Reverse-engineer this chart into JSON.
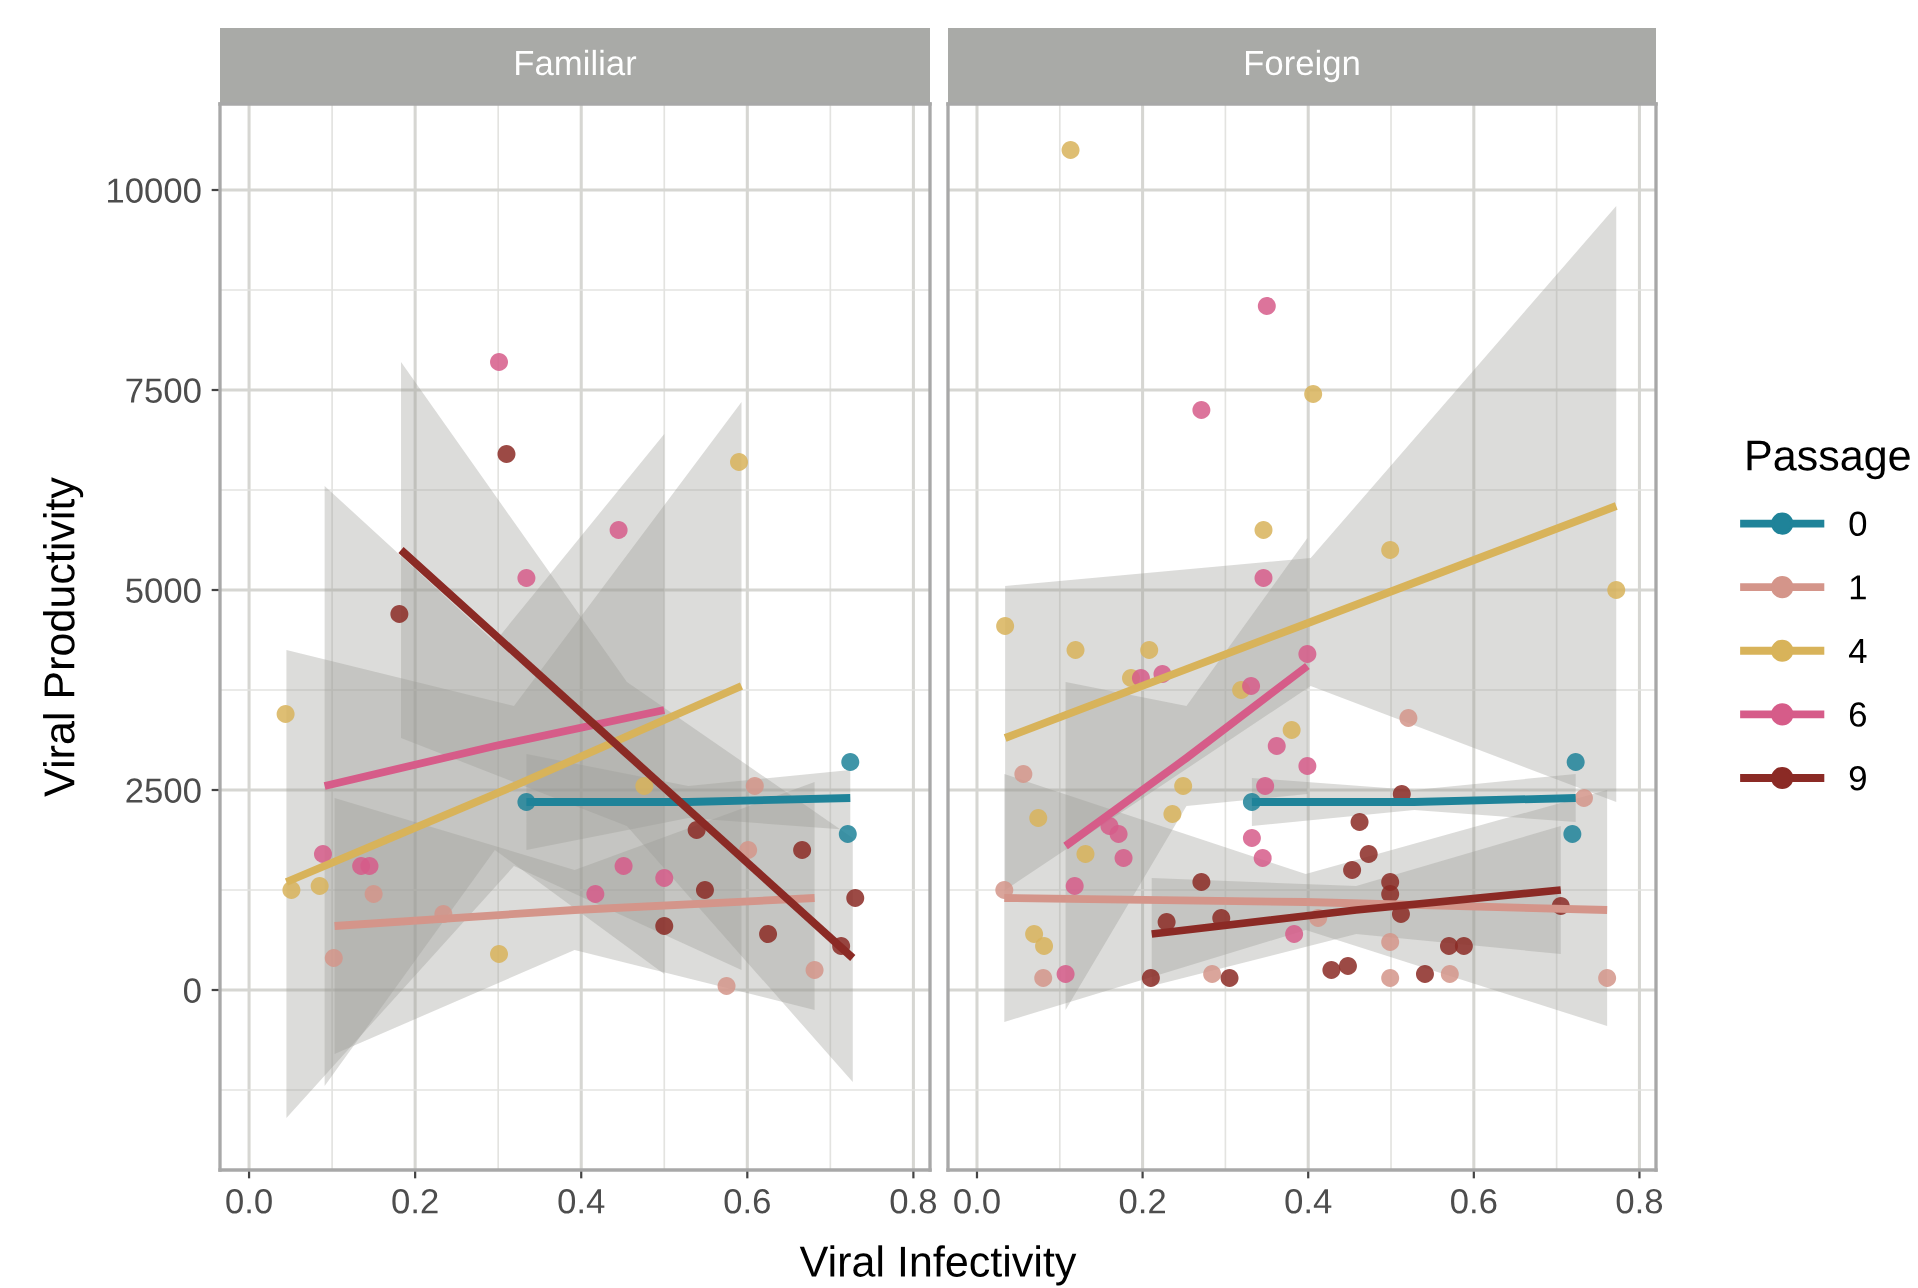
{
  "chart_data": [
    {
      "type": "scatter",
      "title": "Familiar",
      "xlabel": "Viral Infectivity",
      "ylabel": "Viral Productivity",
      "xlim": [
        -0.035,
        0.82
      ],
      "ylim": [
        -2250,
        11075
      ],
      "xticks": [
        {
          "value": 0,
          "label": "0.0"
        },
        0.2,
        0.4,
        0.6,
        0.8
      ],
      "yticks": [
        0,
        2500,
        5000,
        7500,
        10000
      ],
      "grid": true,
      "series": [
        {
          "marker": "circle",
          "color": "#1f8399",
          "x": [
            0.334,
            0.724,
            0.721
          ],
          "values": [
            2350,
            2850,
            1950
          ]
        },
        {
          "marker": "circle",
          "color": "#d4958a",
          "x": [
            0.609,
            0.601,
            0.102,
            0.15,
            0.234,
            0.575,
            0.681
          ],
          "values": [
            2550,
            1750,
            400,
            1200,
            950,
            50,
            250
          ]
        },
        {
          "marker": "circle",
          "color": "#d8b35a",
          "x": [
            0.051,
            0.085,
            0.044,
            0.301,
            0.476,
            0.59
          ],
          "values": [
            1250,
            1300,
            3450,
            450,
            2550,
            6600
          ]
        },
        {
          "marker": "circle",
          "color": "#d65c89",
          "x": [
            0.089,
            0.135,
            0.145,
            0.417,
            0.451,
            0.5,
            0.334,
            0.445,
            0.301
          ],
          "values": [
            1700,
            1550,
            1550,
            1200,
            1550,
            1400,
            5150,
            5750,
            7850
          ]
        },
        {
          "marker": "circle",
          "color": "#8b2a25",
          "x": [
            0.539,
            0.549,
            0.5,
            0.666,
            0.625,
            0.73,
            0.713,
            0.181,
            0.31
          ],
          "values": [
            2000,
            1250,
            800,
            1750,
            700,
            1150,
            550,
            4700,
            6700
          ]
        },
        {
          "type": "line",
          "color": "#1f8399",
          "x": [
            0.334,
            0.529,
            0.724
          ],
          "values": [
            2350,
            2350,
            2400
          ],
          "lower": [
            1750,
            2150,
            2000
          ],
          "upper": [
            2950,
            2550,
            2750
          ]
        },
        {
          "type": "line",
          "color": "#d4958a",
          "x": [
            0.103,
            0.392,
            0.681
          ],
          "values": [
            800,
            1000,
            1150
          ],
          "lower": [
            -800,
            500,
            -250
          ],
          "upper": [
            2400,
            1500,
            2600
          ]
        },
        {
          "type": "line",
          "color": "#d8b35a",
          "x": [
            0.045,
            0.319,
            0.593
          ],
          "values": [
            1350,
            2550,
            3800
          ],
          "lower": [
            -1600,
            1550,
            250
          ],
          "upper": [
            4250,
            3550,
            7350
          ]
        },
        {
          "type": "line",
          "color": "#d65c89",
          "x": [
            0.091,
            0.296,
            0.5
          ],
          "values": [
            2550,
            3050,
            3500
          ],
          "lower": [
            -1200,
            1750,
            200
          ],
          "upper": [
            6300,
            4350,
            6950
          ]
        },
        {
          "type": "line",
          "color": "#8b2a25",
          "x": [
            0.183,
            0.455,
            0.727
          ],
          "values": [
            5500,
            2950,
            400
          ],
          "lower": [
            3150,
            2050,
            -1150
          ],
          "upper": [
            7850,
            3850,
            1900
          ]
        }
      ]
    },
    {
      "type": "scatter",
      "title": "Foreign",
      "legend_title": "Passage",
      "legend": "right",
      "tick_labels": "x",
      "xlim": [
        -0.035,
        0.82
      ],
      "ylim": [
        -2250,
        11075
      ],
      "xticks": [
        {
          "value": 0,
          "label": "0.0"
        },
        0.2,
        0.4,
        0.6,
        0.8
      ],
      "yticks": [
        0,
        2500,
        5000,
        7500,
        10000
      ],
      "grid": true,
      "series": [
        {
          "marker": "circle",
          "color": "#1f8399",
          "x": [
            0.332,
            0.723,
            0.719
          ],
          "values": [
            2350,
            2850,
            1950
          ]
        },
        {
          "marker": "circle",
          "color": "#d4958a",
          "x": [
            0.521,
            0.056,
            0.733,
            0.033,
            0.412,
            0.499,
            0.08,
            0.284,
            0.499,
            0.571,
            0.761
          ],
          "values": [
            3400,
            2700,
            2400,
            1250,
            900,
            600,
            150,
            200,
            150,
            200,
            150
          ]
        },
        {
          "marker": "circle",
          "color": "#d8b35a",
          "x": [
            0.034,
            0.119,
            0.208,
            0.186,
            0.319,
            0.346,
            0.499,
            0.772,
            0.38,
            0.249,
            0.236,
            0.074,
            0.131,
            0.069,
            0.081,
            0.113,
            0.406
          ],
          "values": [
            4550,
            4250,
            4250,
            3900,
            3750,
            5750,
            5500,
            5000,
            3250,
            2550,
            2200,
            2150,
            1700,
            700,
            550,
            10500,
            7450
          ]
        },
        {
          "marker": "circle",
          "color": "#d65c89",
          "x": [
            0.198,
            0.224,
            0.331,
            0.346,
            0.399,
            0.362,
            0.399,
            0.348,
            0.332,
            0.345,
            0.16,
            0.171,
            0.177,
            0.118,
            0.383,
            0.107,
            0.35,
            0.271
          ],
          "values": [
            3900,
            3950,
            3800,
            5150,
            4200,
            3050,
            2800,
            2550,
            1900,
            1650,
            2050,
            1950,
            1650,
            1300,
            700,
            200,
            8550,
            7250
          ]
        },
        {
          "marker": "circle",
          "color": "#8b2a25",
          "x": [
            0.513,
            0.462,
            0.453,
            0.473,
            0.271,
            0.499,
            0.499,
            0.512,
            0.705,
            0.229,
            0.295,
            0.57,
            0.588,
            0.21,
            0.305,
            0.428,
            0.448,
            0.541
          ],
          "values": [
            2450,
            2100,
            1500,
            1700,
            1350,
            1350,
            1200,
            950,
            1050,
            850,
            900,
            550,
            550,
            150,
            150,
            250,
            300,
            200
          ]
        },
        {
          "type": "line",
          "name": "0",
          "color": "#1f8399",
          "x": [
            0.332,
            0.528,
            0.723
          ],
          "values": [
            2350,
            2350,
            2400
          ],
          "lower": [
            2050,
            2250,
            2100
          ],
          "upper": [
            2650,
            2500,
            2700
          ]
        },
        {
          "type": "line",
          "name": "1",
          "color": "#d4958a",
          "x": [
            0.033,
            0.397,
            0.761
          ],
          "values": [
            1150,
            1100,
            1000
          ],
          "lower": [
            -400,
            750,
            -450
          ],
          "upper": [
            2700,
            1450,
            2500
          ]
        },
        {
          "type": "line",
          "name": "4",
          "color": "#d8b35a",
          "x": [
            0.034,
            0.403,
            0.772
          ],
          "values": [
            3150,
            4600,
            6050
          ],
          "lower": [
            1250,
            3800,
            2350
          ],
          "upper": [
            5050,
            5400,
            9800
          ]
        },
        {
          "type": "line",
          "name": "6",
          "color": "#d65c89",
          "x": [
            0.107,
            0.253,
            0.399
          ],
          "values": [
            1800,
            2900,
            4050
          ],
          "lower": [
            -250,
            2300,
            2450
          ],
          "upper": [
            3850,
            3550,
            5650
          ]
        },
        {
          "type": "line",
          "name": "9",
          "color": "#8b2a25",
          "x": [
            0.211,
            0.458,
            0.705
          ],
          "values": [
            700,
            1000,
            1250
          ],
          "lower": [
            50,
            700,
            450
          ],
          "upper": [
            1400,
            1300,
            2050
          ]
        }
      ]
    }
  ]
}
